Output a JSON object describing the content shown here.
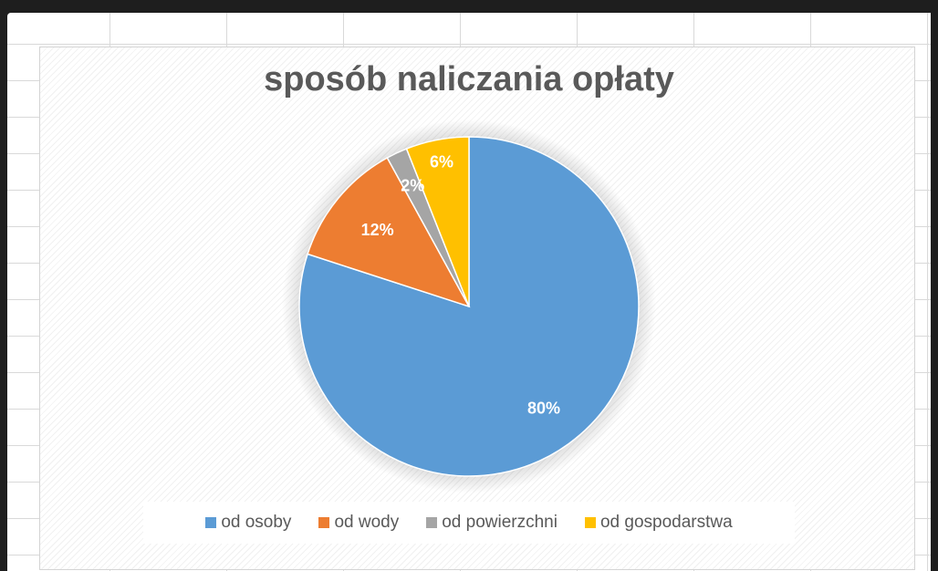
{
  "chart_data": {
    "type": "pie",
    "title": "sposób naliczania opłaty",
    "categories": [
      "od osoby",
      "od wody",
      "od powierzchni",
      "od gospodarstwa"
    ],
    "values": [
      80,
      12,
      2,
      6
    ],
    "data_labels": [
      "80%",
      "12%",
      "2%",
      "6%"
    ],
    "colors": [
      "#5b9bd5",
      "#ed7d31",
      "#a5a5a5",
      "#ffc000"
    ],
    "legend_position": "bottom"
  }
}
